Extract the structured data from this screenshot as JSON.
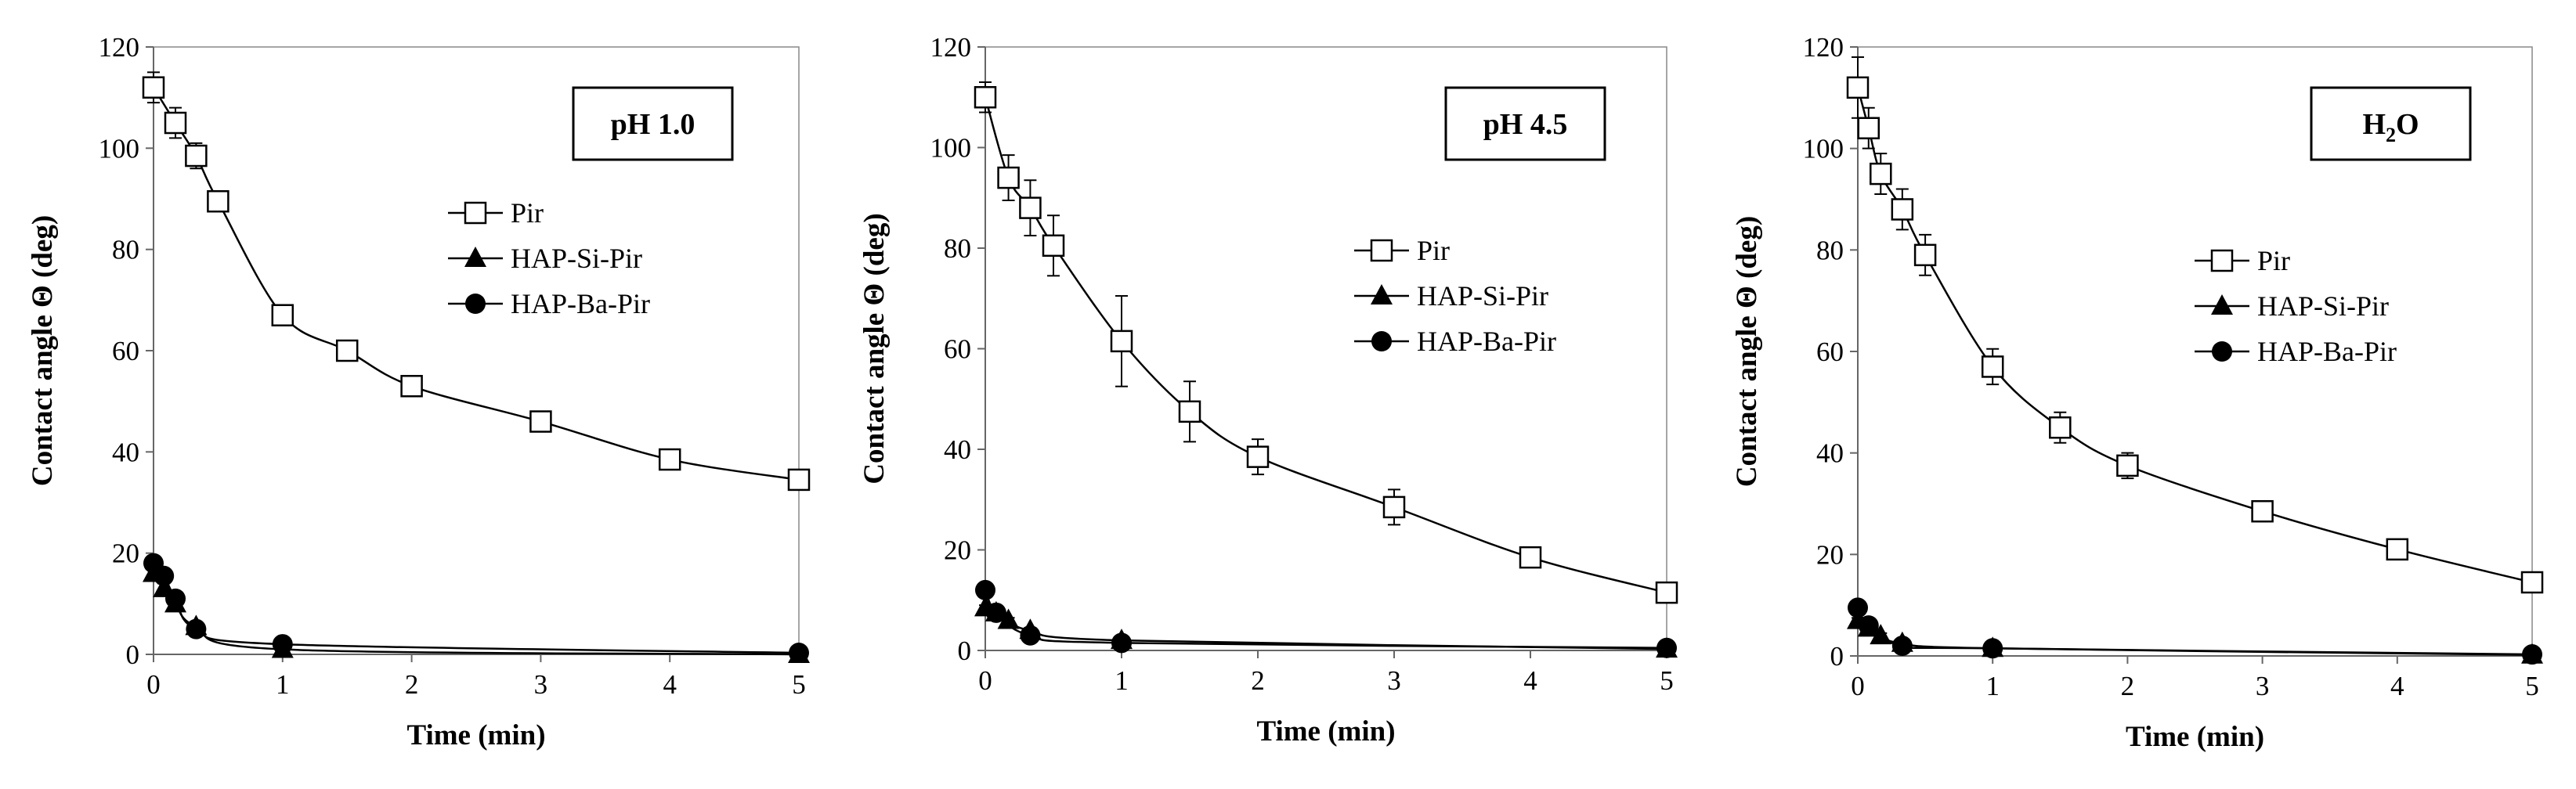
{
  "colors": {
    "ink": "#000000",
    "open_marker_fill": "#ffffff"
  },
  "chart_data": [
    {
      "type": "line",
      "badge": "pH 1.0",
      "xlabel": "Time (min)",
      "ylabel": "Contact angle Θ (deg)",
      "xlim": [
        0,
        5
      ],
      "ylim": [
        0,
        120
      ],
      "xticks": [
        "0",
        "1",
        "2",
        "3",
        "4",
        "5"
      ],
      "yticks": [
        "0",
        "20",
        "40",
        "60",
        "80",
        "100",
        "120"
      ],
      "grid": false,
      "legend_position": "upper-right",
      "series": [
        {
          "name": "Pir",
          "marker": "square-open",
          "x": [
            0,
            0.17,
            0.33,
            0.5,
            1,
            1.5,
            2,
            3,
            4,
            5
          ],
          "y": [
            112,
            105,
            98.5,
            89.5,
            67,
            60,
            53,
            46,
            38.5,
            34.5
          ],
          "err": [
            3,
            3,
            2.5,
            1.5,
            1,
            1,
            1,
            1,
            1,
            1
          ]
        },
        {
          "name": "HAP-Si-Pir",
          "marker": "triangle-filled",
          "x": [
            0,
            0.08,
            0.17,
            0.33,
            1,
            5
          ],
          "y": [
            16,
            13,
            10,
            5.5,
            1,
            0
          ],
          "err": [
            1,
            1,
            1,
            0.5,
            0,
            0
          ]
        },
        {
          "name": "HAP-Ba-Pir",
          "marker": "circle-filled",
          "x": [
            0,
            0.08,
            0.17,
            0.33,
            1,
            5
          ],
          "y": [
            18,
            15.5,
            11,
            5,
            2,
            0.3
          ],
          "err": [
            1,
            1,
            1,
            0.5,
            0.5,
            0
          ]
        }
      ]
    },
    {
      "type": "line",
      "badge": "pH 4.5",
      "xlabel": "Time (min)",
      "ylabel": "Contact angle Θ (deg)",
      "xlim": [
        0,
        5
      ],
      "ylim": [
        0,
        120
      ],
      "xticks": [
        "0",
        "1",
        "2",
        "3",
        "4",
        "5"
      ],
      "yticks": [
        "0",
        "20",
        "40",
        "60",
        "80",
        "100",
        "120"
      ],
      "grid": false,
      "legend_position": "center-right",
      "series": [
        {
          "name": "Pir",
          "marker": "square-open",
          "x": [
            0,
            0.17,
            0.33,
            0.5,
            1,
            1.5,
            2,
            3,
            4,
            5
          ],
          "y": [
            110,
            94,
            88,
            80.5,
            61.5,
            47.5,
            38.5,
            28.5,
            18.5,
            11.5
          ],
          "err": [
            3,
            4.5,
            5.5,
            6,
            9,
            6,
            3.5,
            3.5,
            1,
            1
          ]
        },
        {
          "name": "HAP-Si-Pir",
          "marker": "triangle-filled",
          "x": [
            0,
            0.08,
            0.17,
            0.33,
            1,
            5
          ],
          "y": [
            8.5,
            7.5,
            6,
            4,
            2,
            0.3
          ],
          "err": [
            0.5,
            0.5,
            0.5,
            0.5,
            0,
            0
          ]
        },
        {
          "name": "HAP-Ba-Pir",
          "marker": "circle-filled",
          "x": [
            0,
            0.08,
            0.33,
            1,
            5
          ],
          "y": [
            12,
            7.5,
            3,
            1.5,
            0.5
          ],
          "err": [
            0.5,
            0.5,
            0.5,
            0,
            0
          ]
        }
      ]
    },
    {
      "type": "line",
      "badge": "H2O",
      "badge_main": "H",
      "badge_sub": "2",
      "badge_tail": "O",
      "xlabel": "Time (min)",
      "ylabel": "Contact angle Θ (deg)",
      "xlim": [
        0,
        5
      ],
      "ylim": [
        0,
        120
      ],
      "xticks": [
        "0",
        "1",
        "2",
        "3",
        "4",
        "5"
      ],
      "yticks": [
        "0",
        "20",
        "40",
        "60",
        "80",
        "100",
        "120"
      ],
      "grid": false,
      "legend_position": "center-right",
      "series": [
        {
          "name": "Pir",
          "marker": "square-open",
          "x": [
            0,
            0.08,
            0.17,
            0.33,
            0.5,
            1,
            1.5,
            2,
            3,
            4,
            5
          ],
          "y": [
            112,
            104,
            95,
            88,
            79,
            57,
            45,
            37.5,
            28.5,
            21,
            14.5
          ],
          "err": [
            6,
            4,
            4,
            4,
            4,
            3.5,
            3,
            2.5,
            2,
            1,
            1
          ]
        },
        {
          "name": "HAP-Si-Pir",
          "marker": "triangle-filled",
          "x": [
            0,
            0.08,
            0.17,
            0.33,
            1,
            5
          ],
          "y": [
            7,
            5.5,
            4,
            2.5,
            1.5,
            0.2
          ],
          "err": [
            0.5,
            0.5,
            0.5,
            0,
            0,
            0
          ]
        },
        {
          "name": "HAP-Ba-Pir",
          "marker": "circle-filled",
          "x": [
            0,
            0.08,
            0.33,
            1,
            5
          ],
          "y": [
            9.5,
            6,
            2,
            1.5,
            0.3
          ],
          "err": [
            0.5,
            0.5,
            0,
            0,
            0
          ]
        }
      ]
    }
  ]
}
